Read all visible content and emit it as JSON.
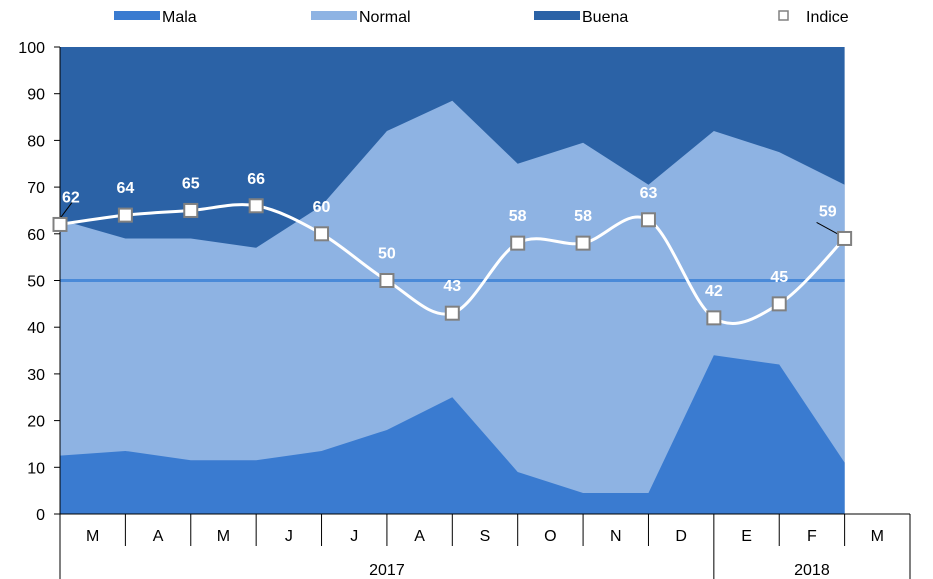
{
  "chart_data": {
    "type": "area",
    "categories": [
      "M",
      "A",
      "M",
      "J",
      "J",
      "A",
      "S",
      "O",
      "N",
      "D",
      "E",
      "F",
      "M"
    ],
    "year_groups": [
      {
        "label": "2017",
        "from": 0,
        "to": 9
      },
      {
        "label": "2018",
        "from": 10,
        "to": 12
      }
    ],
    "series": [
      {
        "name": "Mala",
        "color": "#3A7BD0",
        "cumulative": [
          12.5,
          13.5,
          11.5,
          11.5,
          13.5,
          18,
          25,
          9,
          4.5,
          4.5,
          34,
          32,
          11
        ]
      },
      {
        "name": "Normal",
        "color": "#8EB3E3",
        "cumulative": [
          63,
          59,
          59,
          57,
          66,
          82,
          88.5,
          75,
          79.5,
          70.5,
          82,
          77.5,
          70.5
        ]
      },
      {
        "name": "Buena",
        "color": "#2B62A6",
        "cumulative": [
          100,
          100,
          100,
          100,
          100,
          100,
          100,
          100,
          100,
          100,
          100,
          100,
          100
        ]
      }
    ],
    "index_series": {
      "name": "Indice",
      "values": [
        62,
        64,
        65,
        66,
        60,
        50,
        43,
        58,
        58,
        63,
        42,
        45,
        59
      ],
      "labels": [
        "62",
        "64",
        "65",
        "66",
        "60",
        "50",
        "43",
        "58",
        "58",
        "63",
        "42",
        "45",
        "59"
      ],
      "line_color": "#ffffff",
      "marker_fill": "#ffffff",
      "marker_stroke": "#808080"
    },
    "reference_line": {
      "value": 50,
      "color": "#4A8AD8"
    },
    "yticks": [
      "0",
      "10",
      "20",
      "30",
      "40",
      "50",
      "60",
      "70",
      "80",
      "90",
      "100"
    ],
    "ylim": [
      0,
      100
    ],
    "legend": [
      "Mala",
      "Normal",
      "Buena",
      "Indice"
    ],
    "legend_position": "top",
    "grid": false
  }
}
